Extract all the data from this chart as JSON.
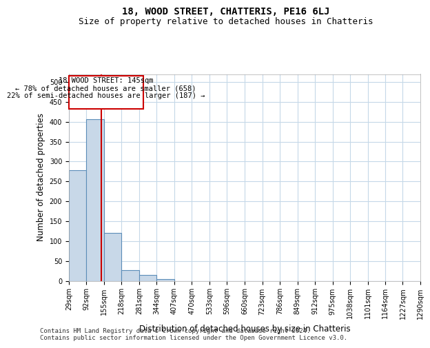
{
  "title": "18, WOOD STREET, CHATTERIS, PE16 6LJ",
  "subtitle": "Size of property relative to detached houses in Chatteris",
  "xlabel": "Distribution of detached houses by size in Chatteris",
  "ylabel": "Number of detached properties",
  "bin_edges": [
    29,
    92,
    155,
    218,
    281,
    344,
    407,
    470,
    533,
    596,
    660,
    723,
    786,
    849,
    912,
    975,
    1038,
    1101,
    1164,
    1227,
    1290
  ],
  "bar_heights": [
    278,
    407,
    121,
    27,
    14,
    5,
    0,
    0,
    0,
    0,
    0,
    0,
    0,
    0,
    0,
    0,
    0,
    0,
    0,
    0
  ],
  "bar_color": "#c8d8e8",
  "bar_edge_color": "#5b8db8",
  "grid_color": "#c5d8e8",
  "subject_size": 145,
  "subject_label": "18 WOOD STREET: 145sqm",
  "annotation_line1": "← 78% of detached houses are smaller (658)",
  "annotation_line2": "22% of semi-detached houses are larger (187) →",
  "vline_color": "#cc0000",
  "box_edge_color": "#cc0000",
  "ylim": [
    0,
    520
  ],
  "yticks": [
    0,
    50,
    100,
    150,
    200,
    250,
    300,
    350,
    400,
    450,
    500
  ],
  "footer_line1": "Contains HM Land Registry data © Crown copyright and database right 2024.",
  "footer_line2": "Contains public sector information licensed under the Open Government Licence v3.0.",
  "title_fontsize": 10,
  "subtitle_fontsize": 9,
  "axis_label_fontsize": 8.5,
  "tick_fontsize": 7,
  "annotation_fontsize": 7.5,
  "footer_fontsize": 6.5
}
